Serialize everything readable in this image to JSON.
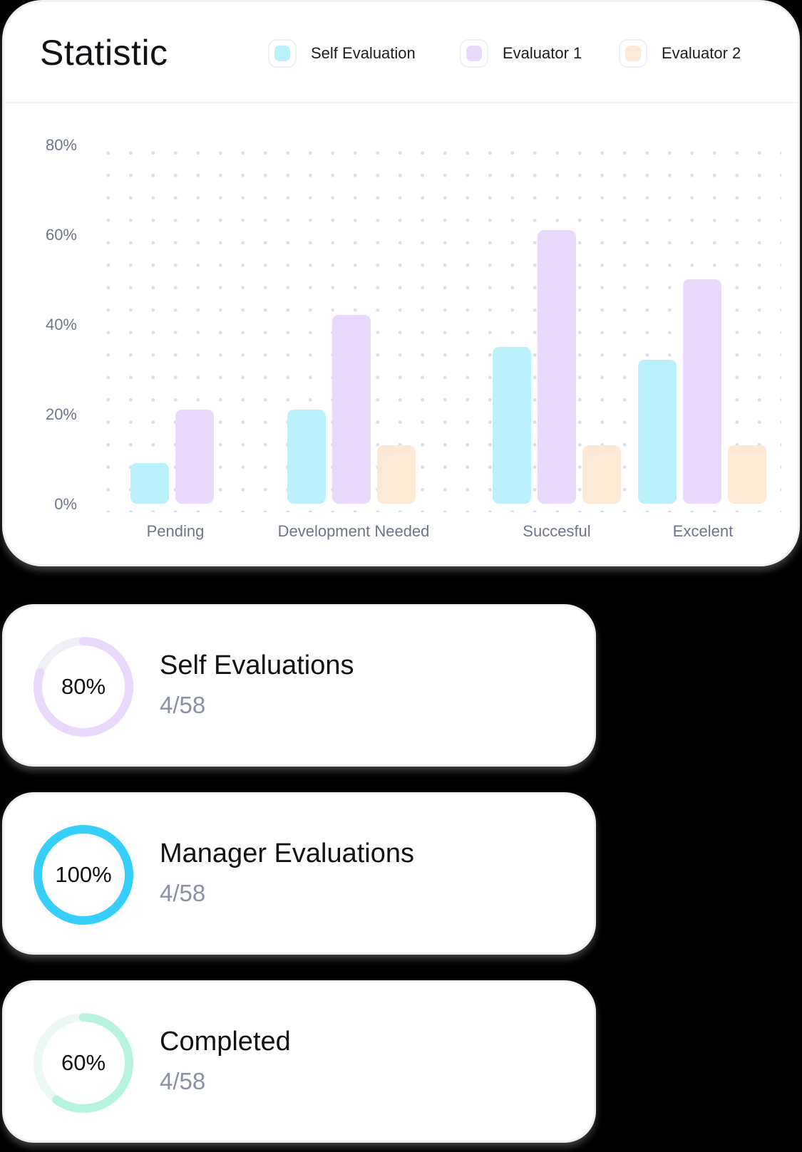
{
  "statistic": {
    "title": "Statistic",
    "legend": [
      {
        "label": "Self Evaluation",
        "color": "#bbf0fd"
      },
      {
        "label": "Evaluator 1",
        "color": "#e9dafd"
      },
      {
        "label": "Evaluator 2",
        "color": "#fbe9d6"
      }
    ],
    "y_ticks": [
      "80%",
      "60%",
      "40%",
      "20%",
      "0%"
    ],
    "categories": [
      "Pending",
      "Development Needed",
      "Succesful",
      "Excelent"
    ]
  },
  "chart_data": {
    "type": "bar",
    "title": "Statistic",
    "xlabel": "",
    "ylabel": "",
    "ylim": [
      0,
      80
    ],
    "y_ticks": [
      "0%",
      "20%",
      "40%",
      "60%",
      "80%"
    ],
    "grid": "dotted",
    "legend_position": "top-right",
    "categories": [
      "Pending",
      "Development Needed",
      "Succesful",
      "Excelent"
    ],
    "series": [
      {
        "name": "Self Evaluation",
        "color": "#bbf0fd",
        "values": [
          9,
          21,
          35,
          32
        ]
      },
      {
        "name": "Evaluator 1",
        "color": "#e9dafd",
        "values": [
          21,
          42,
          61,
          50
        ]
      },
      {
        "name": "Evaluator 2",
        "color": "#fbe9d6",
        "values": [
          0,
          13,
          13,
          13
        ]
      }
    ]
  },
  "progress_cards": [
    {
      "percent_label": "80%",
      "percent": 80,
      "title": "Self Evaluations",
      "count": "4/58",
      "color": "#e9dafd",
      "track": "#efeff8"
    },
    {
      "percent_label": "100%",
      "percent": 100,
      "title": "Manager Evaluations",
      "count": "4/58",
      "color": "#36cffc",
      "track": "#e5f7fe"
    },
    {
      "percent_label": "60%",
      "percent": 60,
      "title": "Completed",
      "count": "4/58",
      "color": "#b8f3e2",
      "track": "#ebf8f4"
    }
  ]
}
